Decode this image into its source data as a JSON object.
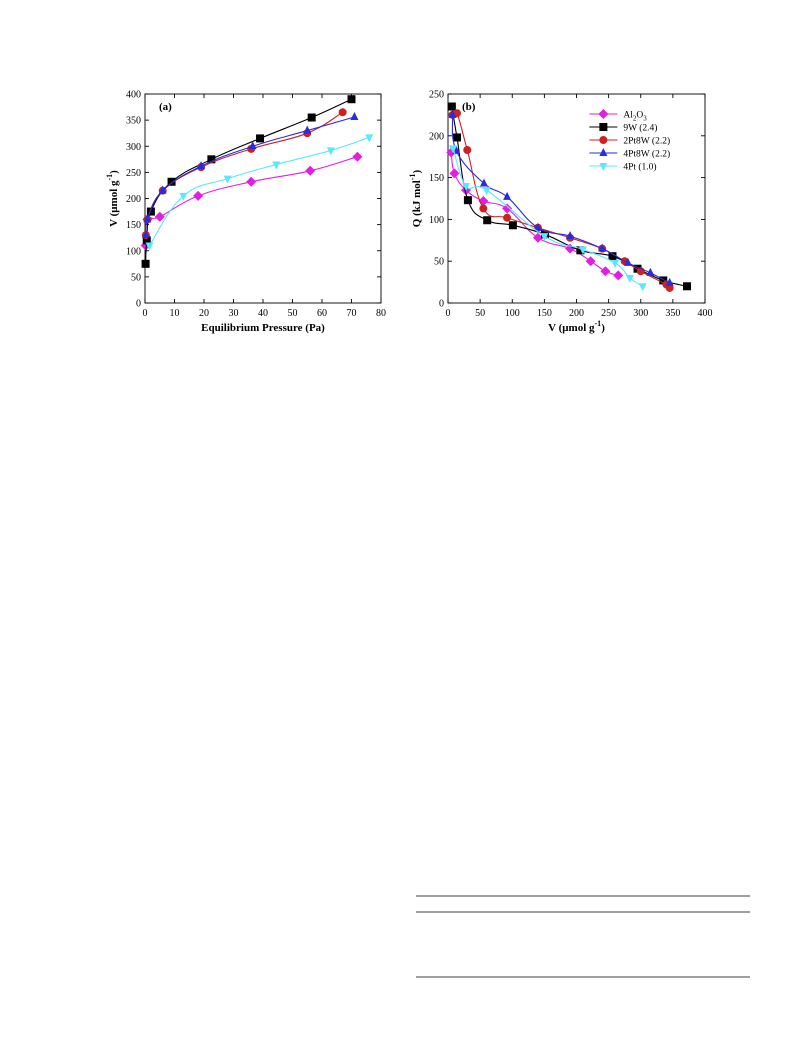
{
  "chart_data": [
    {
      "panel": "(a)",
      "type": "line",
      "xlabel": "Equilibrium Pressure (Pa)",
      "ylabel": "V (μmol g-1)",
      "xlim": [
        0,
        80
      ],
      "ylim": [
        0,
        400
      ],
      "xticks": [
        0,
        10,
        20,
        30,
        40,
        50,
        60,
        70,
        80
      ],
      "yticks": [
        0,
        50,
        100,
        150,
        200,
        250,
        300,
        350,
        400
      ],
      "grid": false,
      "series": [
        {
          "key": "al2o3",
          "color": "#e31ee3",
          "marker": "diamond",
          "x": [
            0.2,
            0.8,
            5,
            18,
            36,
            56,
            72
          ],
          "y": [
            110,
            160,
            165,
            205,
            232,
            253,
            280
          ]
        },
        {
          "key": "9w",
          "color": "#000000",
          "marker": "square",
          "x": [
            0.2,
            0.6,
            2,
            9,
            22.5,
            39,
            56.5,
            70
          ],
          "y": [
            75,
            120,
            175,
            232,
            275,
            315,
            355,
            390
          ]
        },
        {
          "key": "2pt8w",
          "color": "#cc2222",
          "marker": "circle",
          "x": [
            0.3,
            0.8,
            6,
            19,
            36,
            55,
            67
          ],
          "y": [
            130,
            160,
            215,
            260,
            295,
            325,
            365
          ]
        },
        {
          "key": "4pt8w",
          "color": "#2a2ae0",
          "marker": "triangle-up",
          "x": [
            0.3,
            0.8,
            6,
            19,
            36.5,
            55,
            71
          ],
          "y": [
            130,
            160,
            215,
            262,
            300,
            330,
            356
          ]
        },
        {
          "key": "4pt",
          "color": "#59e8ff",
          "marker": "triangle-down",
          "x": [
            1.5,
            13,
            28,
            44.5,
            63,
            76
          ],
          "y": [
            110,
            205,
            238,
            265,
            292,
            317
          ]
        }
      ]
    },
    {
      "panel": "(b)",
      "type": "line",
      "xlabel": "V (μmol g-1)",
      "ylabel": "Q (kJ mol-1)",
      "xlim": [
        0,
        400
      ],
      "ylim": [
        0,
        250
      ],
      "xticks": [
        0,
        50,
        100,
        150,
        200,
        250,
        300,
        350,
        400
      ],
      "yticks": [
        0,
        50,
        100,
        150,
        200,
        250
      ],
      "grid": false,
      "legend": "top-right",
      "series": [
        {
          "key": "al2o3",
          "name": "Al2O3",
          "color": "#e31ee3",
          "marker": "diamond",
          "x": [
            5,
            10,
            28,
            55,
            92,
            140,
            190,
            222,
            245,
            265
          ],
          "y": [
            180,
            155,
            135,
            122,
            113,
            78,
            65,
            50,
            38,
            33
          ]
        },
        {
          "key": "9w",
          "name": "9W (2.4)",
          "color": "#000000",
          "marker": "square",
          "x": [
            6,
            14,
            31,
            61,
            101,
            151,
            206,
            256,
            295,
            335,
            372
          ],
          "y": [
            235,
            198,
            123,
            99,
            93,
            82,
            63,
            56,
            41,
            27,
            20
          ]
        },
        {
          "key": "2pt8w",
          "name": "2Pt8W (2.2)",
          "color": "#cc2222",
          "marker": "circle",
          "x": [
            7,
            14,
            30,
            55,
            92,
            140,
            190,
            240,
            275,
            300,
            340,
            345
          ],
          "y": [
            225,
            227,
            183,
            113,
            102,
            90,
            78,
            65,
            50,
            38,
            22,
            18
          ]
        },
        {
          "key": "4pt8w",
          "name": "4Pt8W (2.2)",
          "color": "#2a2ae0",
          "marker": "triangle-up",
          "x": [
            7,
            13,
            56,
            92,
            140,
            190,
            240,
            280,
            315,
            345
          ],
          "y": [
            225,
            182,
            143,
            127,
            90,
            80,
            65,
            48,
            36,
            24
          ]
        },
        {
          "key": "4pt",
          "name": "4Pt (1.0)",
          "color": "#59e8ff",
          "marker": "triangle-down",
          "x": [
            8,
            28,
            60,
            150,
            210,
            260,
            283,
            303
          ],
          "y": [
            185,
            140,
            135,
            80,
            64,
            48,
            30,
            20
          ]
        }
      ]
    }
  ]
}
